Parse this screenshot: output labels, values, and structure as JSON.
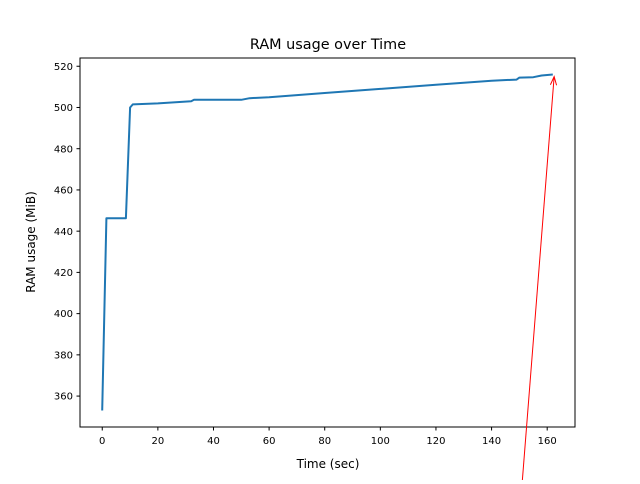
{
  "chart_data": {
    "type": "line",
    "title": "RAM usage over Time",
    "xlabel": "Time (sec)",
    "ylabel": "RAM usage (MiB)",
    "xlim": [
      -8,
      170
    ],
    "ylim": [
      345,
      524
    ],
    "xticks": [
      0,
      20,
      40,
      60,
      80,
      100,
      120,
      140,
      160
    ],
    "yticks": [
      360,
      380,
      400,
      420,
      440,
      460,
      480,
      500,
      520
    ],
    "grid": false,
    "series": [
      {
        "color": "#1f77b4",
        "x": [
          0,
          1.5,
          8.5,
          10,
          11,
          20,
          32,
          33,
          50,
          53,
          60,
          80,
          100,
          120,
          140,
          149,
          150,
          155,
          158,
          162
        ],
        "y": [
          353,
          446.3,
          446.3,
          500,
          501.5,
          502,
          503,
          503.7,
          503.7,
          504.5,
          505,
          507,
          509,
          511,
          513,
          513.5,
          514.5,
          514.7,
          515.5,
          516
        ]
      }
    ],
    "annotations": [
      {
        "type": "arrow",
        "color": "#ff0000",
        "xy": [
          162.5,
          515
        ],
        "xytext": [
          151,
          318
        ]
      }
    ]
  }
}
